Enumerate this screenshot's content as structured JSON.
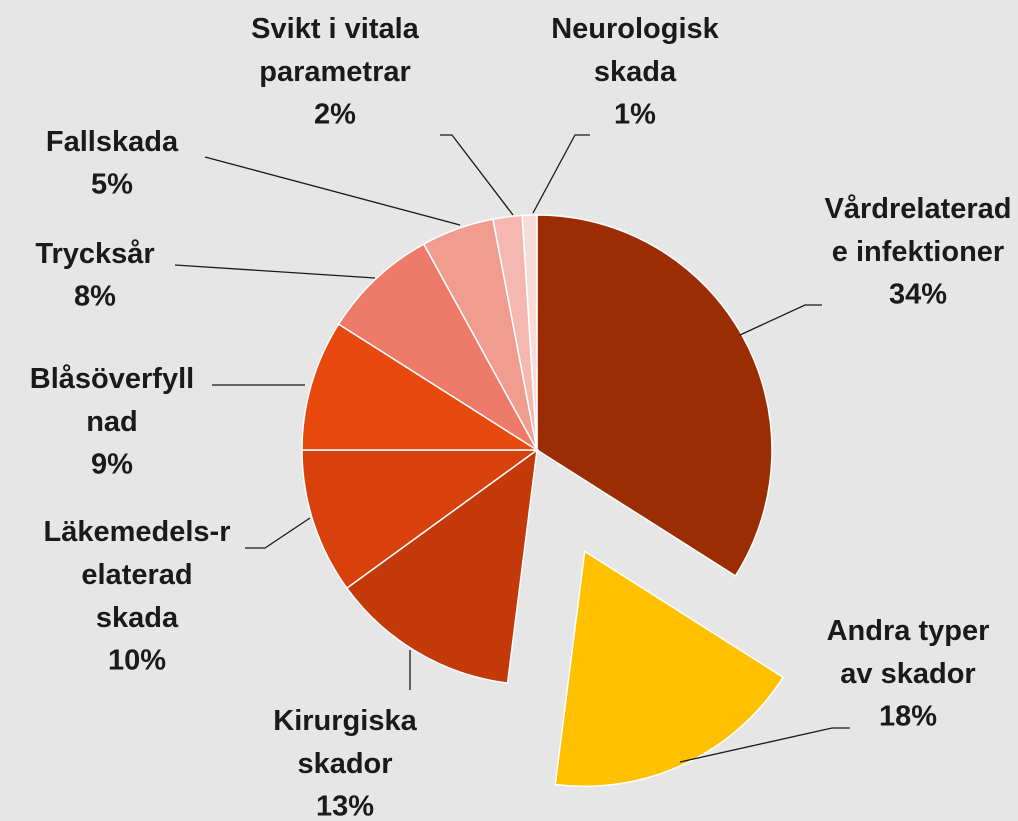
{
  "chart_data": {
    "type": "pie",
    "categories": [
      "Vårdrelaterade infektioner",
      "Andra typer av skador",
      "Kirurgiska skador",
      "Läkemedels-relaterad skada",
      "Blåsöverfyllnad",
      "Trycksår",
      "Fallskada",
      "Svikt i vitala parametrar",
      "Neurologisk skada"
    ],
    "values": [
      34,
      18,
      13,
      10,
      9,
      8,
      5,
      2,
      1
    ],
    "value_labels": [
      "34%",
      "18%",
      "13%",
      "10%",
      "9%",
      "8%",
      "5%",
      "2%",
      "1%"
    ],
    "colors": [
      "#9c2c03",
      "#ffc000",
      "#c4390a",
      "#d8400c",
      "#e8490f",
      "#ee7b6a",
      "#f09d8f",
      "#f4b8b1",
      "#f9dcd8"
    ]
  }
}
